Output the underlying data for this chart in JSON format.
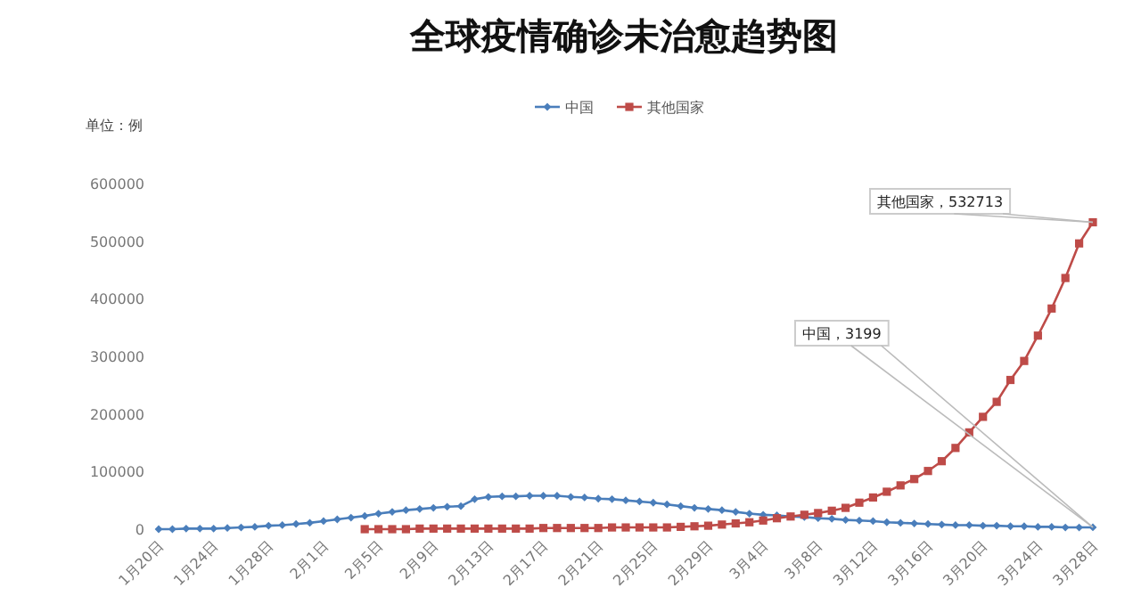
{
  "chart_data": {
    "type": "line",
    "title": "全球疫情确诊未治愈趋势图",
    "ylabel": "单位：例",
    "categories": [
      "1月20日",
      null,
      null,
      null,
      "1月24日",
      null,
      null,
      null,
      "1月28日",
      null,
      null,
      null,
      "2月1日",
      null,
      null,
      null,
      "2月5日",
      null,
      null,
      null,
      "2月9日",
      null,
      null,
      null,
      "2月13日",
      null,
      null,
      null,
      "2月17日",
      null,
      null,
      null,
      "2月21日",
      null,
      null,
      null,
      "2月25日",
      null,
      null,
      null,
      "2月29日",
      null,
      null,
      null,
      "3月4日",
      null,
      null,
      null,
      "3月8日",
      null,
      null,
      null,
      "3月12日",
      null,
      null,
      null,
      "3月16日",
      null,
      null,
      null,
      "3月20日",
      null,
      null,
      null,
      "3月24日",
      null,
      null,
      null,
      "3月28日"
    ],
    "series": [
      {
        "name": "中国",
        "color": "#4a7ebb",
        "marker": "diamond",
        "values": [
          0,
          0,
          1000,
          1000,
          1000,
          2000,
          3000,
          4000,
          6000,
          7000,
          9000,
          11000,
          14000,
          17000,
          20000,
          23000,
          27000,
          30000,
          33000,
          35000,
          37000,
          39000,
          40000,
          52000,
          56000,
          57000,
          57000,
          58000,
          58000,
          58000,
          56000,
          55000,
          53000,
          52000,
          50000,
          48000,
          46000,
          43000,
          40000,
          37000,
          35000,
          33000,
          30000,
          27000,
          25000,
          24000,
          22000,
          21000,
          19000,
          18000,
          16000,
          15000,
          14000,
          12000,
          11000,
          10000,
          9000,
          8000,
          7000,
          7000,
          6000,
          6000,
          5000,
          5000,
          4000,
          4000,
          3000,
          3000,
          3199
        ]
      },
      {
        "name": "其他国家",
        "color": "#be4b48",
        "marker": "square",
        "values": [
          null,
          null,
          null,
          null,
          null,
          null,
          null,
          null,
          null,
          null,
          null,
          null,
          null,
          null,
          null,
          0,
          0,
          0,
          0,
          1000,
          1000,
          1000,
          1000,
          1000,
          1000,
          1000,
          1000,
          1000,
          2000,
          2000,
          2000,
          2000,
          2000,
          3000,
          3000,
          3000,
          3000,
          3000,
          4000,
          5000,
          6000,
          8000,
          10000,
          12000,
          15000,
          19000,
          22000,
          25000,
          28000,
          32000,
          37000,
          46000,
          55000,
          65000,
          76000,
          87000,
          101000,
          118000,
          141000,
          168000,
          195000,
          221000,
          259000,
          292000,
          336000,
          383000,
          436000,
          496000,
          532713
        ]
      }
    ],
    "ylim": [
      0,
      600000
    ],
    "yticks": [
      0,
      100000,
      200000,
      300000,
      400000,
      500000,
      600000
    ],
    "legend": "top",
    "grid": false,
    "line_style": "solid",
    "annotations": [
      {
        "text": "其他国家，532713",
        "x": "3月28日",
        "y": 532713
      },
      {
        "text": "中国，3199",
        "x": "3月28日",
        "y": 3199
      }
    ]
  }
}
